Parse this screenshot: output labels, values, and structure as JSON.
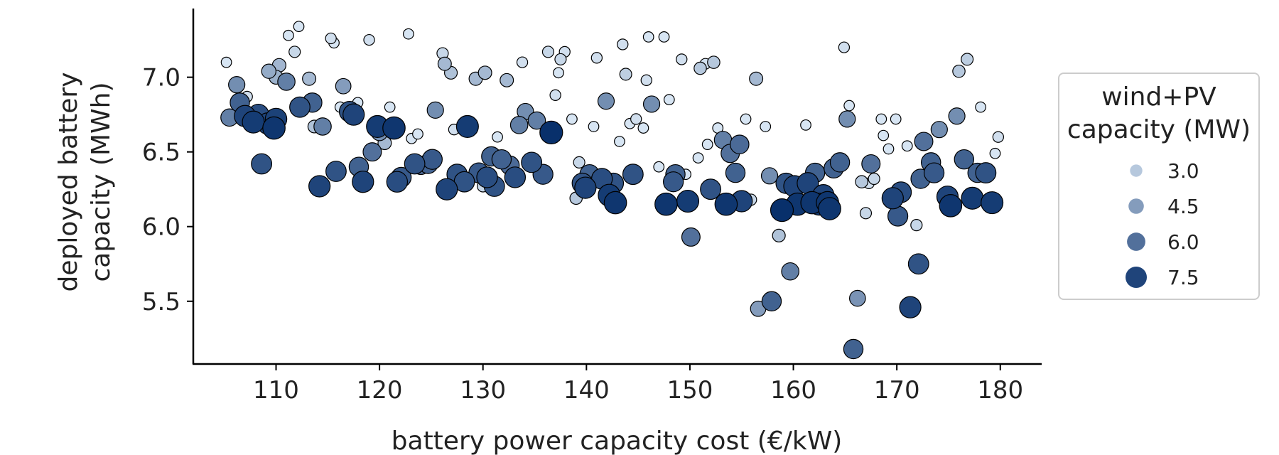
{
  "chart_data": {
    "type": "scatter",
    "title": "",
    "xlabel": "battery power capacity cost (€/kW)",
    "ylabel_lines": [
      "deployed battery",
      "capacity (MWh)"
    ],
    "xlim": [
      102,
      184
    ],
    "ylim": [
      5.08,
      7.46
    ],
    "xticks": [
      110,
      120,
      130,
      140,
      150,
      160,
      170,
      180
    ],
    "yticks": [
      5.5,
      6.0,
      6.5,
      7.0
    ],
    "xtick_labels": [
      "110",
      "120",
      "130",
      "140",
      "150",
      "160",
      "170",
      "180"
    ],
    "ytick_labels": [
      "5.5",
      "6.0",
      "6.5",
      "7.0"
    ],
    "grid": false,
    "legend": {
      "placement": "right",
      "title_lines": [
        "wind+PV",
        "capacity (MW)"
      ],
      "entries": [
        {
          "label": "3.0",
          "value": 3.0
        },
        {
          "label": "4.5",
          "value": 4.5
        },
        {
          "label": "6.0",
          "value": 6.0
        },
        {
          "label": "7.5",
          "value": 7.5
        }
      ]
    },
    "size_color_encoding": "wind+PV capacity (MW)",
    "size_range": [
      1.8,
      8.2
    ],
    "colors": {
      "light": "#deebf7",
      "dark": "#08306b",
      "edge": "#000000"
    },
    "points": [
      {
        "x": 105.5,
        "y": 6.73,
        "size": 5.5
      },
      {
        "x": 106.2,
        "y": 6.95,
        "size": 5.0
      },
      {
        "x": 106.5,
        "y": 6.83,
        "size": 6.5
      },
      {
        "x": 107.0,
        "y": 6.74,
        "size": 7.5
      },
      {
        "x": 107.8,
        "y": 6.7,
        "size": 7.8
      },
      {
        "x": 108.3,
        "y": 6.75,
        "size": 7.2
      },
      {
        "x": 108.6,
        "y": 6.42,
        "size": 7.0
      },
      {
        "x": 109.2,
        "y": 6.69,
        "size": 7.5
      },
      {
        "x": 109.8,
        "y": 6.66,
        "size": 8.0
      },
      {
        "x": 110.0,
        "y": 6.72,
        "size": 7.6
      },
      {
        "x": 105.2,
        "y": 7.1,
        "size": 2.0
      },
      {
        "x": 107.2,
        "y": 6.87,
        "size": 2.2
      },
      {
        "x": 109.3,
        "y": 7.04,
        "size": 4.0
      },
      {
        "x": 110.0,
        "y": 7.0,
        "size": 3.8
      },
      {
        "x": 110.3,
        "y": 7.08,
        "size": 3.6
      },
      {
        "x": 111.0,
        "y": 6.97,
        "size": 5.5
      },
      {
        "x": 111.2,
        "y": 7.28,
        "size": 2.0
      },
      {
        "x": 111.8,
        "y": 7.17,
        "size": 2.5
      },
      {
        "x": 112.2,
        "y": 7.34,
        "size": 2.0
      },
      {
        "x": 112.3,
        "y": 6.8,
        "size": 7.0
      },
      {
        "x": 113.2,
        "y": 6.99,
        "size": 3.5
      },
      {
        "x": 113.5,
        "y": 6.83,
        "size": 6.5
      },
      {
        "x": 113.7,
        "y": 6.67,
        "size": 3.2
      },
      {
        "x": 114.2,
        "y": 6.27,
        "size": 7.5
      },
      {
        "x": 114.5,
        "y": 6.67,
        "size": 5.5
      },
      {
        "x": 115.3,
        "y": 7.26,
        "size": 2.2
      },
      {
        "x": 115.6,
        "y": 7.23,
        "size": 2.0
      },
      {
        "x": 115.8,
        "y": 6.37,
        "size": 7.0
      },
      {
        "x": 116.2,
        "y": 6.8,
        "size": 2.0
      },
      {
        "x": 116.5,
        "y": 6.94,
        "size": 4.5
      },
      {
        "x": 117.1,
        "y": 6.77,
        "size": 7.0
      },
      {
        "x": 117.5,
        "y": 6.75,
        "size": 7.5
      },
      {
        "x": 117.9,
        "y": 6.83,
        "size": 2.0
      },
      {
        "x": 118.0,
        "y": 6.4,
        "size": 6.5
      },
      {
        "x": 118.4,
        "y": 6.3,
        "size": 7.5
      },
      {
        "x": 119.0,
        "y": 7.25,
        "size": 2.2
      },
      {
        "x": 119.3,
        "y": 6.5,
        "size": 6.0
      },
      {
        "x": 119.8,
        "y": 6.67,
        "size": 7.8
      },
      {
        "x": 120.0,
        "y": 6.63,
        "size": 5.0
      },
      {
        "x": 120.5,
        "y": 6.56,
        "size": 3.5
      },
      {
        "x": 121.0,
        "y": 6.8,
        "size": 2.0
      },
      {
        "x": 121.4,
        "y": 6.66,
        "size": 8.0
      },
      {
        "x": 121.7,
        "y": 6.3,
        "size": 7.2
      },
      {
        "x": 122.1,
        "y": 6.33,
        "size": 6.8
      },
      {
        "x": 122.8,
        "y": 7.29,
        "size": 2.0
      },
      {
        "x": 123.1,
        "y": 6.59,
        "size": 2.0
      },
      {
        "x": 123.4,
        "y": 6.42,
        "size": 7.0
      },
      {
        "x": 123.7,
        "y": 6.62,
        "size": 2.0
      },
      {
        "x": 124.0,
        "y": 6.41,
        "size": 6.0
      },
      {
        "x": 124.7,
        "y": 6.42,
        "size": 6.5
      },
      {
        "x": 125.1,
        "y": 6.45,
        "size": 6.8
      },
      {
        "x": 125.4,
        "y": 6.78,
        "size": 5.0
      },
      {
        "x": 126.1,
        "y": 7.16,
        "size": 2.5
      },
      {
        "x": 126.3,
        "y": 7.09,
        "size": 3.5
      },
      {
        "x": 126.5,
        "y": 6.25,
        "size": 7.5
      },
      {
        "x": 126.9,
        "y": 7.03,
        "size": 3.2
      },
      {
        "x": 127.2,
        "y": 6.65,
        "size": 2.2
      },
      {
        "x": 127.5,
        "y": 6.35,
        "size": 7.0
      },
      {
        "x": 128.2,
        "y": 6.3,
        "size": 7.0
      },
      {
        "x": 128.5,
        "y": 6.67,
        "size": 7.8
      },
      {
        "x": 129.0,
        "y": 6.68,
        "size": 2.0
      },
      {
        "x": 129.3,
        "y": 6.99,
        "size": 3.5
      },
      {
        "x": 129.6,
        "y": 6.36,
        "size": 6.8
      },
      {
        "x": 130.0,
        "y": 6.27,
        "size": 2.5
      },
      {
        "x": 130.2,
        "y": 7.03,
        "size": 3.5
      },
      {
        "x": 130.4,
        "y": 6.33,
        "size": 7.2
      },
      {
        "x": 130.8,
        "y": 6.47,
        "size": 6.5
      },
      {
        "x": 131.1,
        "y": 6.27,
        "size": 7.0
      },
      {
        "x": 131.4,
        "y": 6.6,
        "size": 2.0
      },
      {
        "x": 131.8,
        "y": 6.45,
        "size": 6.5
      },
      {
        "x": 132.3,
        "y": 6.98,
        "size": 3.5
      },
      {
        "x": 132.6,
        "y": 6.41,
        "size": 6.2
      },
      {
        "x": 133.1,
        "y": 6.33,
        "size": 7.2
      },
      {
        "x": 133.5,
        "y": 6.68,
        "size": 5.5
      },
      {
        "x": 133.8,
        "y": 7.1,
        "size": 2.2
      },
      {
        "x": 134.1,
        "y": 6.77,
        "size": 5.0
      },
      {
        "x": 134.7,
        "y": 6.43,
        "size": 7.0
      },
      {
        "x": 135.2,
        "y": 6.71,
        "size": 5.5
      },
      {
        "x": 135.8,
        "y": 6.35,
        "size": 6.8
      },
      {
        "x": 136.3,
        "y": 7.17,
        "size": 2.5
      },
      {
        "x": 136.6,
        "y": 6.63,
        "size": 8.2
      },
      {
        "x": 137.0,
        "y": 6.88,
        "size": 2.2
      },
      {
        "x": 137.3,
        "y": 7.03,
        "size": 2.0
      },
      {
        "x": 137.5,
        "y": 7.12,
        "size": 2.5
      },
      {
        "x": 137.9,
        "y": 7.17,
        "size": 2.2
      },
      {
        "x": 138.6,
        "y": 6.72,
        "size": 2.0
      },
      {
        "x": 139.0,
        "y": 6.19,
        "size": 3.0
      },
      {
        "x": 139.3,
        "y": 6.43,
        "size": 2.5
      },
      {
        "x": 139.6,
        "y": 6.29,
        "size": 7.0
      },
      {
        "x": 139.9,
        "y": 6.26,
        "size": 7.5
      },
      {
        "x": 140.3,
        "y": 6.35,
        "size": 6.5
      },
      {
        "x": 140.7,
        "y": 6.67,
        "size": 2.0
      },
      {
        "x": 141.0,
        "y": 7.13,
        "size": 2.2
      },
      {
        "x": 141.5,
        "y": 6.32,
        "size": 7.2
      },
      {
        "x": 141.9,
        "y": 6.84,
        "size": 5.0
      },
      {
        "x": 142.2,
        "y": 6.21,
        "size": 7.8
      },
      {
        "x": 142.6,
        "y": 6.29,
        "size": 7.0
      },
      {
        "x": 142.8,
        "y": 6.16,
        "size": 8.0
      },
      {
        "x": 143.2,
        "y": 6.57,
        "size": 2.0
      },
      {
        "x": 143.5,
        "y": 7.22,
        "size": 2.2
      },
      {
        "x": 143.8,
        "y": 7.02,
        "size": 2.8
      },
      {
        "x": 144.2,
        "y": 6.69,
        "size": 2.0
      },
      {
        "x": 144.5,
        "y": 6.35,
        "size": 7.0
      },
      {
        "x": 144.8,
        "y": 6.72,
        "size": 2.2
      },
      {
        "x": 145.5,
        "y": 6.66,
        "size": 2.0
      },
      {
        "x": 145.8,
        "y": 6.98,
        "size": 2.2
      },
      {
        "x": 146.0,
        "y": 7.27,
        "size": 2.0
      },
      {
        "x": 146.3,
        "y": 6.82,
        "size": 5.0
      },
      {
        "x": 147.0,
        "y": 6.4,
        "size": 2.0
      },
      {
        "x": 147.5,
        "y": 7.27,
        "size": 2.0
      },
      {
        "x": 147.7,
        "y": 6.15,
        "size": 8.0
      },
      {
        "x": 148.0,
        "y": 6.85,
        "size": 2.0
      },
      {
        "x": 148.4,
        "y": 6.3,
        "size": 6.8
      },
      {
        "x": 148.6,
        "y": 6.35,
        "size": 6.5
      },
      {
        "x": 149.2,
        "y": 7.12,
        "size": 2.2
      },
      {
        "x": 149.6,
        "y": 6.35,
        "size": 2.0
      },
      {
        "x": 149.8,
        "y": 6.17,
        "size": 7.8
      },
      {
        "x": 150.1,
        "y": 5.93,
        "size": 6.0
      },
      {
        "x": 150.8,
        "y": 6.46,
        "size": 2.0
      },
      {
        "x": 151.0,
        "y": 7.06,
        "size": 3.0
      },
      {
        "x": 151.5,
        "y": 7.09,
        "size": 2.2
      },
      {
        "x": 151.7,
        "y": 6.55,
        "size": 2.0
      },
      {
        "x": 152.0,
        "y": 6.25,
        "size": 7.0
      },
      {
        "x": 152.3,
        "y": 7.1,
        "size": 3.0
      },
      {
        "x": 152.7,
        "y": 6.66,
        "size": 2.0
      },
      {
        "x": 153.2,
        "y": 6.58,
        "size": 5.5
      },
      {
        "x": 153.5,
        "y": 6.15,
        "size": 8.0
      },
      {
        "x": 153.9,
        "y": 6.49,
        "size": 6.0
      },
      {
        "x": 154.4,
        "y": 6.36,
        "size": 6.5
      },
      {
        "x": 154.8,
        "y": 6.55,
        "size": 6.2
      },
      {
        "x": 155.0,
        "y": 6.17,
        "size": 7.5
      },
      {
        "x": 155.4,
        "y": 6.72,
        "size": 2.0
      },
      {
        "x": 155.9,
        "y": 6.18,
        "size": 2.5
      },
      {
        "x": 156.4,
        "y": 6.99,
        "size": 3.5
      },
      {
        "x": 156.6,
        "y": 5.45,
        "size": 4.5
      },
      {
        "x": 157.3,
        "y": 6.67,
        "size": 2.0
      },
      {
        "x": 157.7,
        "y": 6.34,
        "size": 5.0
      },
      {
        "x": 157.9,
        "y": 5.5,
        "size": 6.5
      },
      {
        "x": 158.6,
        "y": 5.94,
        "size": 3.2
      },
      {
        "x": 158.9,
        "y": 6.11,
        "size": 8.2
      },
      {
        "x": 159.3,
        "y": 6.29,
        "size": 7.0
      },
      {
        "x": 159.7,
        "y": 5.7,
        "size": 5.5
      },
      {
        "x": 160.1,
        "y": 6.27,
        "size": 7.5
      },
      {
        "x": 160.4,
        "y": 6.15,
        "size": 8.0
      },
      {
        "x": 161.2,
        "y": 6.68,
        "size": 2.0
      },
      {
        "x": 161.4,
        "y": 6.29,
        "size": 7.5
      },
      {
        "x": 161.8,
        "y": 6.16,
        "size": 8.0
      },
      {
        "x": 162.1,
        "y": 6.36,
        "size": 6.5
      },
      {
        "x": 162.5,
        "y": 6.15,
        "size": 7.8
      },
      {
        "x": 162.9,
        "y": 6.21,
        "size": 7.5
      },
      {
        "x": 163.3,
        "y": 6.16,
        "size": 8.0
      },
      {
        "x": 163.5,
        "y": 6.12,
        "size": 8.0
      },
      {
        "x": 163.9,
        "y": 6.39,
        "size": 6.5
      },
      {
        "x": 164.5,
        "y": 6.43,
        "size": 6.5
      },
      {
        "x": 164.9,
        "y": 7.2,
        "size": 2.2
      },
      {
        "x": 165.2,
        "y": 6.72,
        "size": 5.0
      },
      {
        "x": 165.4,
        "y": 6.81,
        "size": 2.0
      },
      {
        "x": 165.8,
        "y": 5.18,
        "size": 6.5
      },
      {
        "x": 166.2,
        "y": 5.52,
        "size": 4.8
      },
      {
        "x": 166.6,
        "y": 6.3,
        "size": 3.0
      },
      {
        "x": 167.0,
        "y": 6.09,
        "size": 2.5
      },
      {
        "x": 167.3,
        "y": 6.29,
        "size": 2.2
      },
      {
        "x": 167.5,
        "y": 6.42,
        "size": 6.0
      },
      {
        "x": 167.8,
        "y": 6.32,
        "size": 2.5
      },
      {
        "x": 168.5,
        "y": 6.72,
        "size": 2.0
      },
      {
        "x": 168.7,
        "y": 6.61,
        "size": 2.0
      },
      {
        "x": 169.2,
        "y": 6.52,
        "size": 2.0
      },
      {
        "x": 169.6,
        "y": 6.19,
        "size": 7.5
      },
      {
        "x": 169.9,
        "y": 6.72,
        "size": 2.0
      },
      {
        "x": 170.1,
        "y": 6.07,
        "size": 6.8
      },
      {
        "x": 170.4,
        "y": 6.23,
        "size": 7.2
      },
      {
        "x": 171.0,
        "y": 6.54,
        "size": 2.0
      },
      {
        "x": 171.3,
        "y": 5.46,
        "size": 7.5
      },
      {
        "x": 171.9,
        "y": 6.01,
        "size": 2.5
      },
      {
        "x": 172.1,
        "y": 5.75,
        "size": 7.0
      },
      {
        "x": 172.3,
        "y": 6.32,
        "size": 6.5
      },
      {
        "x": 172.6,
        "y": 6.57,
        "size": 6.0
      },
      {
        "x": 173.0,
        "y": 6.33,
        "size": 2.0
      },
      {
        "x": 173.3,
        "y": 6.43,
        "size": 6.5
      },
      {
        "x": 173.6,
        "y": 6.36,
        "size": 6.8
      },
      {
        "x": 174.1,
        "y": 6.65,
        "size": 5.0
      },
      {
        "x": 174.9,
        "y": 6.2,
        "size": 7.5
      },
      {
        "x": 175.2,
        "y": 6.14,
        "size": 8.0
      },
      {
        "x": 175.4,
        "y": 6.12,
        "size": 2.8
      },
      {
        "x": 175.8,
        "y": 6.74,
        "size": 5.0
      },
      {
        "x": 176.0,
        "y": 7.04,
        "size": 3.0
      },
      {
        "x": 176.5,
        "y": 6.45,
        "size": 6.5
      },
      {
        "x": 176.8,
        "y": 7.12,
        "size": 2.8
      },
      {
        "x": 177.3,
        "y": 6.19,
        "size": 7.8
      },
      {
        "x": 177.8,
        "y": 6.36,
        "size": 6.5
      },
      {
        "x": 178.1,
        "y": 6.8,
        "size": 2.0
      },
      {
        "x": 178.6,
        "y": 6.36,
        "size": 7.0
      },
      {
        "x": 179.2,
        "y": 6.16,
        "size": 7.8
      },
      {
        "x": 179.5,
        "y": 6.49,
        "size": 2.0
      },
      {
        "x": 179.8,
        "y": 6.6,
        "size": 2.2
      }
    ]
  }
}
